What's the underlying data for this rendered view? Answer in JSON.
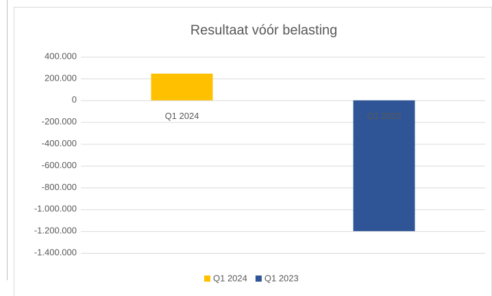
{
  "chart_data": {
    "type": "bar",
    "title": "Resultaat vóór belasting",
    "categories": [
      "Q1 2024",
      "Q1 2023"
    ],
    "series": [
      {
        "name": "Q1 2024",
        "color": "#FFC000",
        "values": [
          245000,
          null
        ]
      },
      {
        "name": "Q1 2023",
        "color": "#2F5597",
        "values": [
          null,
          -1200000
        ]
      }
    ],
    "ylim": [
      -1400000,
      400000
    ],
    "yticks": [
      {
        "value": -1400000,
        "label": "-1.400.000"
      },
      {
        "value": -1200000,
        "label": "-1.200.000"
      },
      {
        "value": -1000000,
        "label": "-1.000.000"
      },
      {
        "value": -800000,
        "label": "-800.000"
      },
      {
        "value": -600000,
        "label": "-600.000"
      },
      {
        "value": -400000,
        "label": "-400.000"
      },
      {
        "value": -200000,
        "label": "-200.000"
      },
      0,
      {
        "value": 200000,
        "label": "200.000"
      },
      {
        "value": 400000,
        "label": "400.000"
      }
    ],
    "grid": true,
    "legend": "bottom"
  }
}
